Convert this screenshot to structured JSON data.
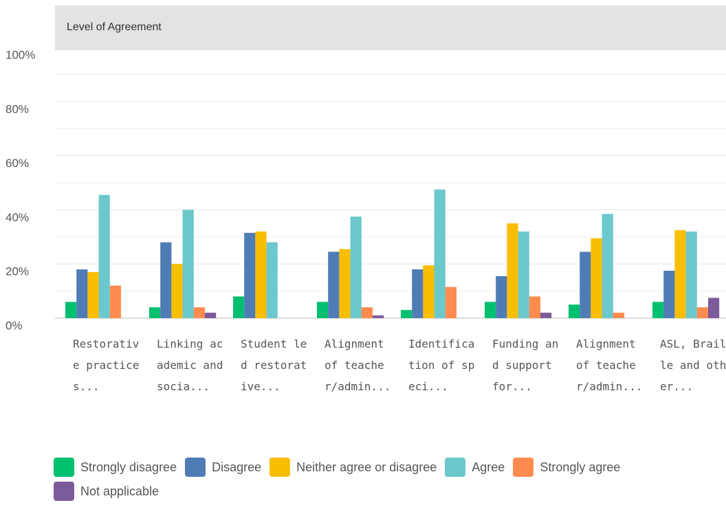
{
  "chart_data": {
    "type": "bar",
    "title": "Level of Agreement",
    "categories": [
      "Restorative practices...",
      "Linking academic and socia...",
      "Student led restorative...",
      "Alignment of teacher/admin...",
      "Identification of speci...",
      "Funding and support for...",
      "Alignment of teacher/admin...",
      "ASL, Braille and other..."
    ],
    "series": [
      {
        "name": "Strongly disagree",
        "color": "#00bf6f",
        "values": [
          6,
          4,
          8,
          6,
          3,
          6,
          5,
          6
        ]
      },
      {
        "name": "Disagree",
        "color": "#507cb6",
        "values": [
          18,
          28,
          31.5,
          24.5,
          18,
          15.5,
          24.5,
          17.5
        ]
      },
      {
        "name": "Neither agree or disagree",
        "color": "#f9be00",
        "values": [
          17,
          20,
          32,
          25.5,
          19.5,
          35,
          29.5,
          32.5
        ]
      },
      {
        "name": "Agree",
        "color": "#6bc8cd",
        "values": [
          45.5,
          40,
          28,
          37.5,
          47.5,
          32,
          38.5,
          32
        ]
      },
      {
        "name": "Strongly agree",
        "color": "#ff8b4f",
        "values": [
          12,
          4,
          0,
          4,
          11.5,
          8,
          2,
          4
        ]
      },
      {
        "name": "Not applicable",
        "color": "#7d5b9a",
        "values": [
          0,
          2,
          0,
          1,
          0,
          2,
          0,
          7.5
        ]
      }
    ],
    "ylim": [
      0,
      100
    ],
    "yticks": [
      {
        "value": 0,
        "label": "0%"
      },
      {
        "value": 20,
        "label": "20%"
      },
      {
        "value": 40,
        "label": "40%"
      },
      {
        "value": 60,
        "label": "60%"
      },
      {
        "value": 80,
        "label": "80%"
      },
      {
        "value": 100,
        "label": "100%"
      }
    ],
    "grid": true
  }
}
